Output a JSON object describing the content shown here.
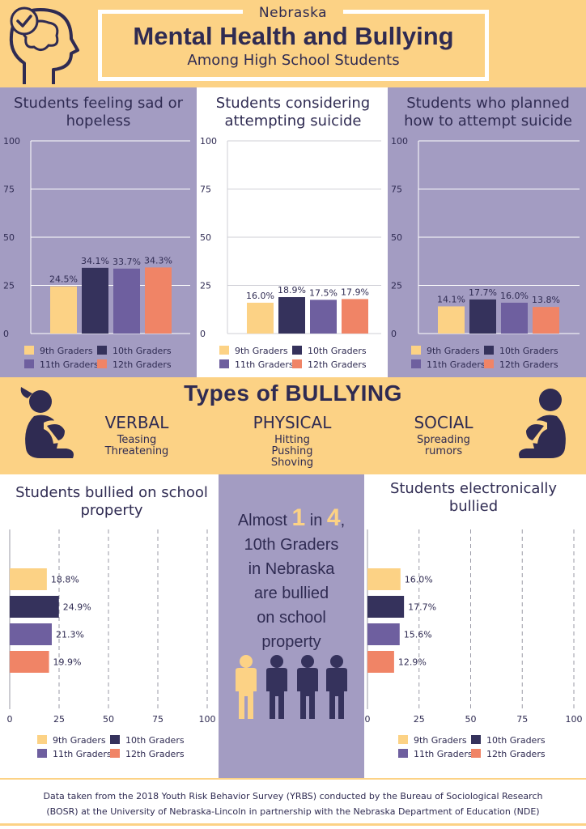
{
  "header": {
    "state": "Nebraska",
    "title": "Mental Health and Bullying",
    "subtitle": "Among High School Students"
  },
  "colors": {
    "yellow": "#fcd285",
    "navy": "#35325c",
    "purple": "#6e5f9f",
    "salmon": "#f08466",
    "panel_purple": "#a39cc2",
    "text": "#2f2b52"
  },
  "legend": [
    "9th Graders",
    "10th Graders",
    "11th Graders",
    "12th Graders"
  ],
  "bullying": {
    "heading": "Types of BULLYING",
    "types": [
      {
        "name": "VERBAL",
        "desc": [
          "Teasing",
          "Threatening"
        ]
      },
      {
        "name": "PHYSICAL",
        "desc": [
          "Hitting",
          "Pushing",
          "Shoving"
        ]
      },
      {
        "name": "SOCIAL",
        "desc": [
          "Spreading",
          "rumors"
        ]
      }
    ]
  },
  "callout": {
    "line1_pre": "Almost",
    "num1": "1",
    "line1_mid": "in",
    "num2": "4",
    "line1_post": ",",
    "rest": [
      "10th Graders",
      "in Nebraska",
      "are bullied",
      "on school",
      "property"
    ]
  },
  "footer": {
    "line1": "Data taken from the 2018 Youth Risk Behavior Survey (YRBS) conducted by the Bureau of Sociological Research",
    "line2": "(BOSR) at the University of Nebraska-Lincoln in partnership with the Nebraska Department of Education (NDE)"
  },
  "chart_data": [
    {
      "type": "bar",
      "title": "Students feeling sad or hopeless",
      "categories": [
        "9th Graders",
        "10th Graders",
        "11th Graders",
        "12th Graders"
      ],
      "values": [
        24.5,
        34.1,
        33.7,
        34.3
      ],
      "labels": [
        "24.5%",
        "34.1%",
        "33.7%",
        "34.3%"
      ],
      "yticks": [
        "0",
        "25",
        "50",
        "75",
        "100"
      ],
      "ylim": [
        0,
        100
      ]
    },
    {
      "type": "bar",
      "title": "Students considering attempting suicide",
      "categories": [
        "9th Graders",
        "10th Graders",
        "11th Graders",
        "12th Graders"
      ],
      "values": [
        16.0,
        18.9,
        17.5,
        17.9
      ],
      "labels": [
        "16.0%",
        "18.9%",
        "17.5%",
        "17.9%"
      ],
      "yticks": [
        "0",
        "25",
        "50",
        "75",
        "100"
      ],
      "ylim": [
        0,
        100
      ]
    },
    {
      "type": "bar",
      "title": "Students who planned how to attempt suicide",
      "categories": [
        "9th Graders",
        "10th Graders",
        "11th Graders",
        "12th Graders"
      ],
      "values": [
        14.1,
        17.7,
        16.0,
        13.8
      ],
      "labels": [
        "14.1%",
        "17.7%",
        "16.0%",
        "13.8%"
      ],
      "yticks": [
        "0",
        "25",
        "50",
        "75",
        "100"
      ],
      "ylim": [
        0,
        100
      ]
    },
    {
      "type": "bar",
      "orientation": "horizontal",
      "title": "Students bullied on school property",
      "categories": [
        "9th Graders",
        "10th Graders",
        "11th Graders",
        "12th Graders"
      ],
      "values": [
        18.8,
        24.9,
        21.3,
        19.9
      ],
      "labels": [
        "18.8%",
        "24.9%",
        "21.3%",
        "19.9%"
      ],
      "xticks": [
        "0",
        "25",
        "50",
        "75",
        "100"
      ],
      "xlim": [
        0,
        100
      ]
    },
    {
      "type": "bar",
      "orientation": "horizontal",
      "title": "Students electronically bullied",
      "categories": [
        "9th Graders",
        "10th Graders",
        "11th Graders",
        "12th Graders"
      ],
      "values": [
        16.0,
        17.7,
        15.6,
        12.9
      ],
      "labels": [
        "16.0%",
        "17.7%",
        "15.6%",
        "12.9%"
      ],
      "xticks": [
        "0",
        "25",
        "50",
        "75",
        "100"
      ],
      "xlim": [
        0,
        100
      ]
    }
  ]
}
